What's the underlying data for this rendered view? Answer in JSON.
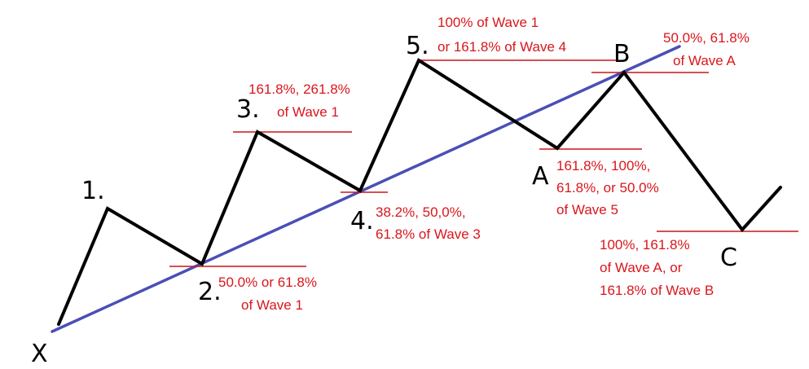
{
  "colors": {
    "wave": "#000000",
    "trend": "#4a4fb5",
    "annotation": "#d9161c",
    "ruler": "#c8161c"
  },
  "points": {
    "x": "X",
    "w1": "1.",
    "w2": "2.",
    "w3": "3.",
    "w4": "4.",
    "w5": "5.",
    "a": "A",
    "b": "B",
    "c": "C"
  },
  "annotations": {
    "w2": [
      "50.0% or 61.8%",
      "of Wave 1"
    ],
    "w3": [
      "161.8%, 261.8%",
      "of Wave 1"
    ],
    "w4": [
      "38.2%, 50,0%,",
      "61.8% of Wave 3"
    ],
    "w5": [
      "100% of Wave 1",
      "or 161.8% of Wave 4"
    ],
    "a": [
      "161.8%, 100%,",
      "61.8%, or 50.0%",
      "of Wave 5"
    ],
    "b": [
      "50.0%, 61.8%",
      "of Wave A"
    ],
    "c": [
      "100%, 161.8%",
      "of Wave A, or",
      "161.8% of Wave B"
    ]
  }
}
